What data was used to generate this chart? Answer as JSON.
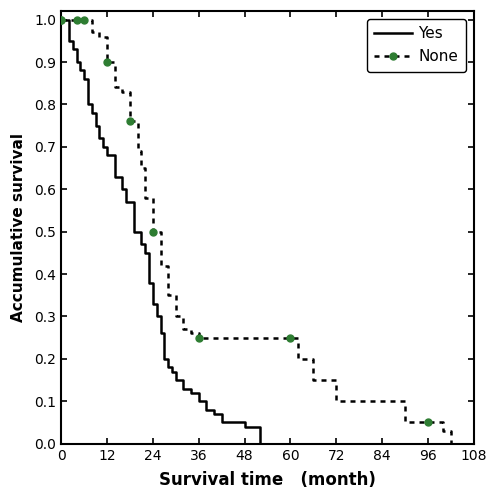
{
  "xlabel": "Survival time   (month)",
  "ylabel": "Accumulative survival",
  "xlim": [
    0,
    108
  ],
  "ylim": [
    0.0,
    1.02
  ],
  "xticks": [
    0,
    12,
    24,
    36,
    48,
    60,
    72,
    84,
    96,
    108
  ],
  "yticks": [
    0.0,
    0.1,
    0.2,
    0.3,
    0.4,
    0.5,
    0.6,
    0.7,
    0.8,
    0.9,
    1.0
  ],
  "yes_x": [
    0,
    2,
    3,
    4,
    5,
    6,
    7,
    8,
    9,
    10,
    11,
    12,
    14,
    16,
    17,
    19,
    21,
    22,
    23,
    24,
    25,
    26,
    27,
    28,
    29,
    30,
    32,
    34,
    36,
    38,
    40,
    42,
    48,
    52
  ],
  "yes_y": [
    1.0,
    0.95,
    0.93,
    0.9,
    0.88,
    0.86,
    0.8,
    0.78,
    0.75,
    0.72,
    0.7,
    0.68,
    0.63,
    0.6,
    0.57,
    0.5,
    0.47,
    0.45,
    0.38,
    0.33,
    0.3,
    0.26,
    0.2,
    0.18,
    0.17,
    0.15,
    0.13,
    0.12,
    0.1,
    0.08,
    0.07,
    0.05,
    0.04,
    0.0
  ],
  "none_x": [
    0,
    6,
    8,
    10,
    12,
    14,
    16,
    18,
    20,
    21,
    22,
    24,
    26,
    28,
    30,
    32,
    34,
    36,
    48,
    60,
    62,
    66,
    72,
    74,
    84,
    90,
    96,
    100,
    102
  ],
  "none_y": [
    1.0,
    1.0,
    0.97,
    0.96,
    0.9,
    0.84,
    0.83,
    0.76,
    0.69,
    0.65,
    0.58,
    0.5,
    0.42,
    0.35,
    0.3,
    0.27,
    0.26,
    0.25,
    0.25,
    0.25,
    0.2,
    0.15,
    0.1,
    0.1,
    0.1,
    0.05,
    0.05,
    0.03,
    0.0
  ],
  "none_green_markers_x": [
    0,
    6,
    12,
    18,
    24,
    36,
    60,
    96
  ],
  "none_green_markers_y": [
    1.0,
    1.0,
    0.9,
    0.76,
    0.5,
    0.25,
    0.25,
    0.05
  ],
  "yes_color": "#000000",
  "none_color": "#000000",
  "none_marker_color": "#2e7d32",
  "background_color": "#ffffff",
  "legend_loc": "upper right",
  "legend_yes": "Yes",
  "legend_none": "None",
  "fig_width": 4.98,
  "fig_height": 5.0,
  "dpi": 100
}
